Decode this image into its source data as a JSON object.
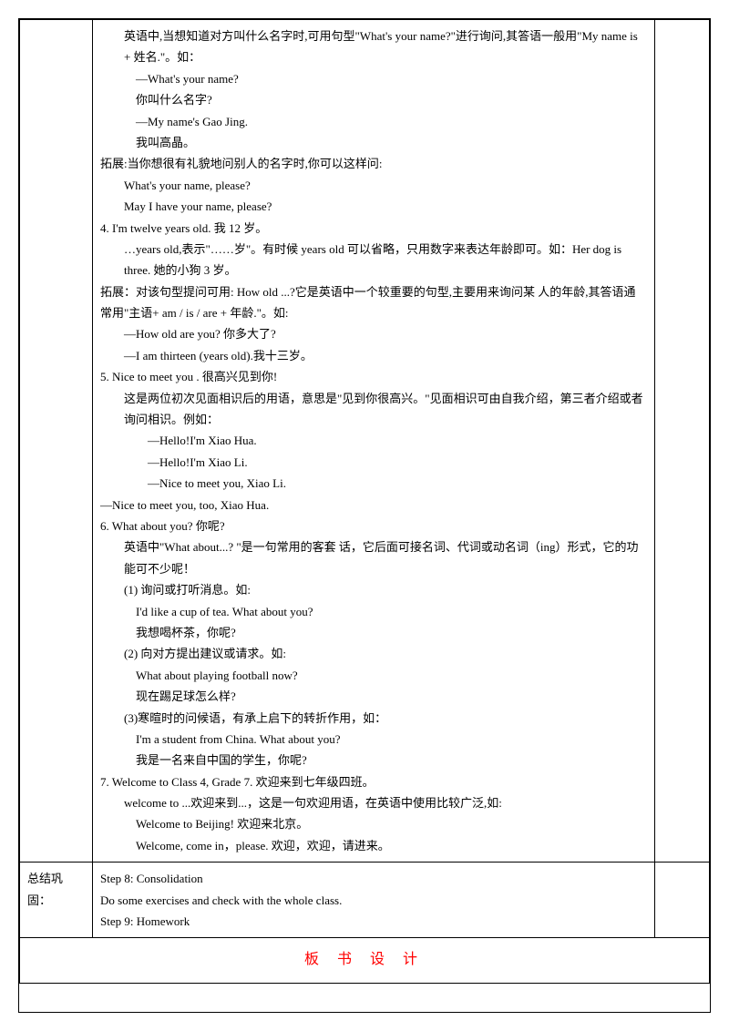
{
  "main": {
    "p1": "英语中,当想知道对方叫什么名字时,可用句型\"What's your name?\"进行询问,其答语一般用\"My name is + 姓名.\"。如：",
    "p2": "—What's your name?",
    "p3": "你叫什么名字?",
    "p4": "—My name's Gao Jing.",
    "p5": "我叫高晶。",
    "p6": "拓展:当你想很有礼貌地问别人的名字时,你可以这样问:",
    "p7": "What's your name, please?",
    "p8": "May I have your name, please?",
    "p9": "4.  I'm twelve years old. 我 12 岁。",
    "p10": "…years old,表示\"……岁\"。有时候 years old 可以省略，只用数字来表达年龄即可。如：Her dog is three. 她的小狗 3 岁。",
    "p11": "拓展：对该句型提问可用: How old ...?它是英语中一个较重要的句型,主要用来询问某 人的年龄,其答语通常用\"主语+ am / is / are + 年龄.\"。如:",
    "p12": "—How old are you? 你多大了?",
    "p13": "—I am thirteen (years old).我十三岁。",
    "p14": "5.  Nice to meet you . 很高兴见到你!",
    "p15": "这是两位初次见面相识后的用语，意思是\"见到你很高兴。\"见面相识可由自我介绍，第三者介绍或者询问相识。例如：",
    "p16": "—Hello!I'm Xiao Hua.",
    "p17": "—Hello!I'm Xiao Li.",
    "p18": "—Nice to meet you, Xiao Li.",
    "p19": "—Nice to meet you, too, Xiao Hua.",
    "p20": "6. What about you?  你呢?",
    "p21": "英语中\"What about...? \"是一句常用的客套 话，它后面可接名词、代词或动名词（ing）形式，它的功能可不少呢！",
    "p22": "(1) 询问或打听消息。如:",
    "p23": "I'd like a cup of tea. What about you?",
    "p24": "我想喝杯茶，你呢?",
    "p25": "(2) 向对方提出建议或请求。如:",
    "p26": "What about playing football now?",
    "p27": "现在踢足球怎么样?",
    "p28": "(3)寒暄时的问候语，有承上启下的转折作用，如：",
    "p29": "I'm a student from China. What about you?",
    "p30": "我是一名来自中国的学生，你呢?",
    "p31": "7. Welcome to Class 4, Grade 7. 欢迎来到七年级四班。",
    "p32": "welcome to ...欢迎来到...，这是一句欢迎用语，在英语中使用比较广泛,如:",
    "p33": "Welcome to Beijing!  欢迎来北京。",
    "p34": "Welcome, come in，please. 欢迎，欢迎，请进来。"
  },
  "summary": {
    "label": "总结巩固：",
    "p1": "Step 8: Consolidation",
    "p2": "Do some exercises and check with the whole class.",
    "p3": "Step 9: Homework"
  },
  "board": {
    "title": "板 书 设 计"
  }
}
